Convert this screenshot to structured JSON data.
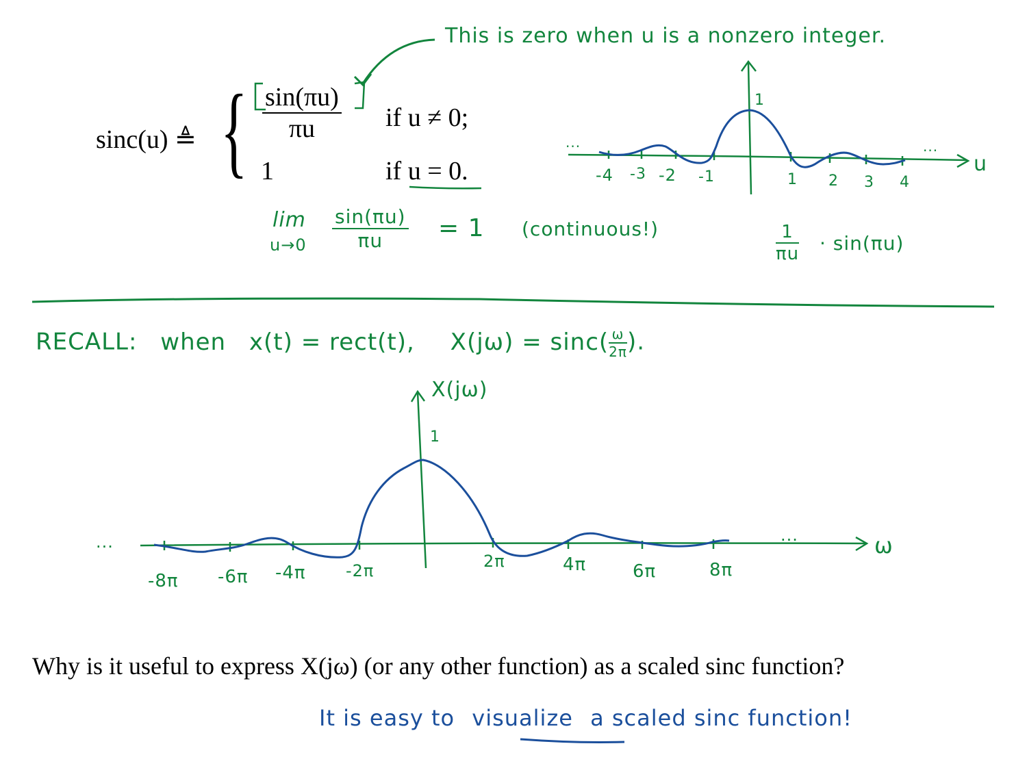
{
  "colors": {
    "ink_green": "#12853d",
    "ink_blue": "#1b4f9c",
    "text": "#000000"
  },
  "definition": {
    "lhs": "sinc(u) ≜",
    "case1_num": "sin(πu)",
    "case1_den": "πu",
    "case1_cond": "if u ≠ 0;",
    "case2_val": "1",
    "case2_cond": "if u = 0."
  },
  "annotations": {
    "zero_note": "This is zero when u is a nonzero integer.",
    "limit_lim": "lim",
    "limit_sub": "u→0",
    "limit_num": "sin(πu)",
    "limit_den": "πu",
    "limit_eq": "= 1",
    "continuous": "(continuous!)",
    "product_num": "1",
    "product_den": "πu",
    "product_rest": "· sin(πu)"
  },
  "small_plot": {
    "axis_label": "u",
    "peak_label": "1",
    "dots_left": "...",
    "dots_right": "...",
    "ticks": [
      "-4",
      "-3",
      "-2",
      "-1",
      "1",
      "2",
      "3",
      "4"
    ]
  },
  "recall": {
    "prefix": "RECALL:",
    "when": "when",
    "pair": "x(t) = rect(t),",
    "X": "X(jω) = sinc(",
    "frac_num": "ω",
    "frac_den": "2π",
    "close": ")."
  },
  "big_plot": {
    "y_label": "X(jω)",
    "x_label": "ω",
    "peak_label": "1",
    "dots_left": "...",
    "dots_right": "...",
    "ticks": [
      "-8π",
      "-6π",
      "-4π",
      "-2π",
      "2π",
      "4π",
      "6π",
      "8π"
    ]
  },
  "question": "Why is it useful to express X(jω) (or any other function) as a scaled sinc function?",
  "answer": {
    "part1": "It is easy to",
    "underlined": "visualize",
    "part2": "a scaled sinc function!"
  }
}
